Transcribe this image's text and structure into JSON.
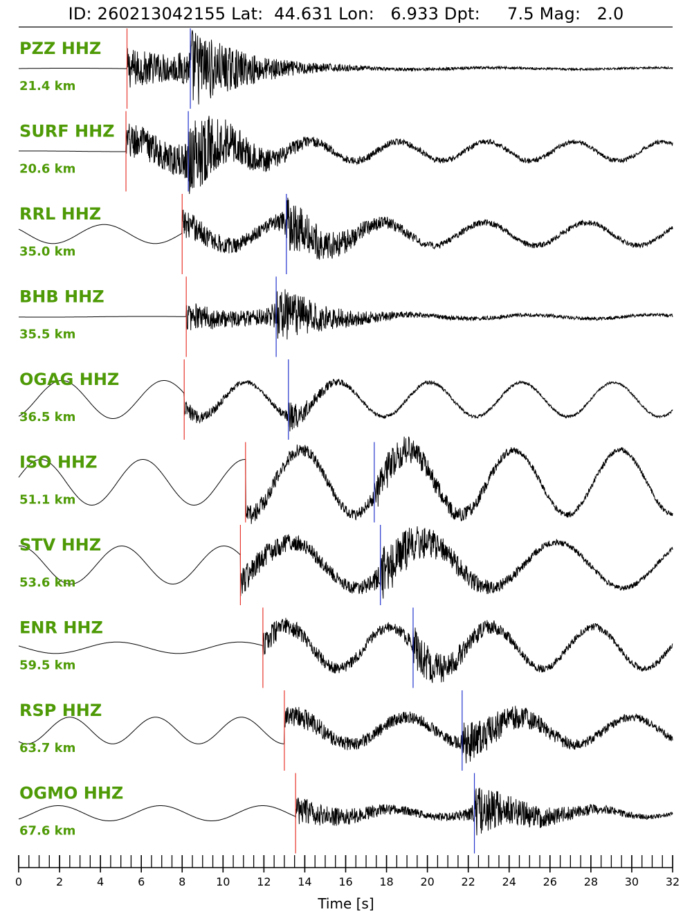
{
  "title": "ID: 260213042155 Lat:  44.631 Lon:   6.933 Dpt:     7.5 Mag:   2.0",
  "chart_data": {
    "type": "line",
    "xlabel": "Time [s]",
    "xlim": [
      0,
      32
    ],
    "x_ticks": [
      0,
      2,
      4,
      6,
      8,
      10,
      12,
      14,
      16,
      18,
      20,
      22,
      24,
      26,
      28,
      30,
      32
    ],
    "minor_tick_step": 0.5,
    "colors": {
      "trace": "#000000",
      "p_pick": "#e8342b",
      "s_pick": "#2233cc",
      "label": "#4e9a06"
    },
    "traces": [
      {
        "station": "PZZ HHZ",
        "distance": "21.4 km",
        "p_time": 5.3,
        "s_time": 8.4,
        "low_amp": 0.01,
        "low_per": 10,
        "burst_amp": 1.0,
        "burst_len": 3.5,
        "coda_amp": 0.15,
        "swell_amp": 0.02,
        "swell_per": 8
      },
      {
        "station": "SURF HHZ",
        "distance": "20.6 km",
        "p_time": 5.25,
        "s_time": 8.3,
        "low_amp": 0.01,
        "low_per": 10,
        "burst_amp": 1.0,
        "burst_len": 3.5,
        "coda_amp": 0.3,
        "swell_amp": 0.25,
        "swell_per": 4.3
      },
      {
        "station": "RRL HHZ",
        "distance": "35.0 km",
        "p_time": 8.0,
        "s_time": 13.1,
        "low_amp": 0.25,
        "low_per": 5,
        "burst_amp": 0.7,
        "burst_len": 4.0,
        "coda_amp": 0.3,
        "swell_amp": 0.3,
        "swell_per": 5
      },
      {
        "station": "BHB HHZ",
        "distance": "35.5 km",
        "p_time": 8.2,
        "s_time": 12.6,
        "low_amp": 0.01,
        "low_per": 10,
        "burst_amp": 0.75,
        "burst_len": 3.5,
        "coda_amp": 0.2,
        "swell_amp": 0.05,
        "swell_per": 6
      },
      {
        "station": "OGAG HHZ",
        "distance": "36.5 km",
        "p_time": 8.1,
        "s_time": 13.2,
        "low_amp": 0.5,
        "low_per": 5,
        "burst_amp": 0.45,
        "burst_len": 2.0,
        "coda_amp": 0.15,
        "swell_amp": 0.45,
        "swell_per": 4.5
      },
      {
        "station": "ISO HHZ",
        "distance": "51.1 km",
        "p_time": 11.1,
        "s_time": 17.4,
        "low_amp": 0.6,
        "low_per": 5,
        "burst_amp": 0.5,
        "burst_len": 5.0,
        "coda_amp": 0.3,
        "swell_amp": 0.85,
        "swell_per": 5.2
      },
      {
        "station": "STV HHZ",
        "distance": "53.6 km",
        "p_time": 10.85,
        "s_time": 17.7,
        "low_amp": 0.5,
        "low_per": 5,
        "burst_amp": 0.75,
        "burst_len": 4.5,
        "coda_amp": 0.3,
        "swell_amp": 0.6,
        "swell_per": 6.5
      },
      {
        "station": "ENR HHZ",
        "distance": "59.5 km",
        "p_time": 11.95,
        "s_time": 19.3,
        "low_amp": 0.15,
        "low_per": 6,
        "burst_amp": 0.6,
        "burst_len": 4.0,
        "coda_amp": 0.35,
        "swell_amp": 0.55,
        "swell_per": 5
      },
      {
        "station": "RSP HHZ",
        "distance": "63.7 km",
        "p_time": 13.0,
        "s_time": 21.7,
        "low_amp": 0.35,
        "low_per": 4.2,
        "burst_amp": 0.6,
        "burst_len": 5.0,
        "coda_amp": 0.4,
        "swell_amp": 0.35,
        "swell_per": 5.5
      },
      {
        "station": "OGMO HHZ",
        "distance": "67.6 km",
        "p_time": 13.55,
        "s_time": 22.3,
        "low_amp": 0.2,
        "low_per": 5,
        "burst_amp": 0.7,
        "burst_len": 4.5,
        "coda_amp": 0.15,
        "swell_amp": 0.1,
        "swell_per": 5
      }
    ]
  }
}
